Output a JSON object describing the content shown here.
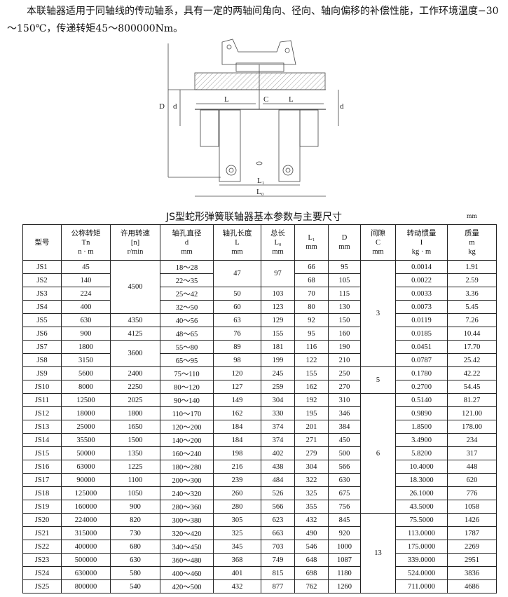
{
  "intro": "本联轴器适用于同轴线的传动轴系，具有一定的两轴间角向、径向、轴向偏移的补偿性能，工作环境温度−30～150℃，传递转矩45～800000Nm。",
  "drawing_labels": {
    "D": "D",
    "d": "d",
    "L": "L",
    "C": "C",
    "L1": "L₁",
    "L0": "L₀"
  },
  "table_title": "JS型蛇形弹簧联轴器基本参数与主要尺寸",
  "unit": "mm",
  "headers": [
    [
      "型号"
    ],
    [
      "公称转矩",
      "Tn",
      "n · m"
    ],
    [
      "许用转速",
      "[n]",
      "r/min"
    ],
    [
      "轴孔直径",
      "d",
      "mm"
    ],
    [
      "轴孔长度",
      "L",
      "mm"
    ],
    [
      "总长",
      "L₀",
      "mm"
    ],
    [
      "L₁",
      "mm"
    ],
    [
      "D",
      "mm"
    ],
    [
      "间隙",
      "C",
      "mm"
    ],
    [
      "转动惯量",
      "I",
      "kg · m"
    ],
    [
      "质量",
      "m",
      "kg"
    ]
  ],
  "rows": [
    [
      "JS1",
      "45",
      "4500",
      "18～28",
      "47",
      "97",
      "66",
      "95",
      "3",
      "0.0014",
      "1.91"
    ],
    [
      "JS2",
      "140",
      null,
      "22～35",
      null,
      null,
      "68",
      "105",
      null,
      "0.0022",
      "2.59"
    ],
    [
      "JS3",
      "224",
      null,
      "25～42",
      "50",
      "103",
      "70",
      "115",
      null,
      "0.0033",
      "3.36"
    ],
    [
      "JS4",
      "400",
      null,
      "32～50",
      "60",
      "123",
      "80",
      "130",
      null,
      "0.0073",
      "5.45"
    ],
    [
      "JS5",
      "630",
      "4350",
      "40～56",
      "63",
      "129",
      "92",
      "150",
      null,
      "0.0119",
      "7.26"
    ],
    [
      "JS6",
      "900",
      "4125",
      "48～65",
      "76",
      "155",
      "95",
      "160",
      null,
      "0.0185",
      "10.44"
    ],
    [
      "JS7",
      "1800",
      "3600",
      "55～80",
      "89",
      "181",
      "116",
      "190",
      null,
      "0.0451",
      "17.70"
    ],
    [
      "JS8",
      "3150",
      null,
      "65～95",
      "98",
      "199",
      "122",
      "210",
      null,
      "0.0787",
      "25.42"
    ],
    [
      "JS9",
      "5600",
      "2400",
      "75～110",
      "120",
      "245",
      "155",
      "250",
      "5",
      "0.1780",
      "42.22"
    ],
    [
      "JS10",
      "8000",
      "2250",
      "80～120",
      "127",
      "259",
      "162",
      "270",
      null,
      "0.2700",
      "54.45"
    ],
    [
      "JS11",
      "12500",
      "2025",
      "90～140",
      "149",
      "304",
      "192",
      "310",
      "6",
      "0.5140",
      "81.27"
    ],
    [
      "JS12",
      "18000",
      "1800",
      "110～170",
      "162",
      "330",
      "195",
      "346",
      null,
      "0.9890",
      "121.00"
    ],
    [
      "JS13",
      "25000",
      "1650",
      "120～200",
      "184",
      "374",
      "201",
      "384",
      null,
      "1.8500",
      "178.00"
    ],
    [
      "JS14",
      "35500",
      "1500",
      "140～200",
      "184",
      "374",
      "271",
      "450",
      null,
      "3.4900",
      "234"
    ],
    [
      "JS15",
      "50000",
      "1350",
      "160～240",
      "198",
      "402",
      "279",
      "500",
      null,
      "5.8200",
      "317"
    ],
    [
      "JS16",
      "63000",
      "1225",
      "180～280",
      "216",
      "438",
      "304",
      "566",
      null,
      "10.4000",
      "448"
    ],
    [
      "JS17",
      "90000",
      "1100",
      "200～300",
      "239",
      "484",
      "322",
      "630",
      null,
      "18.3000",
      "620"
    ],
    [
      "JS18",
      "125000",
      "1050",
      "240～320",
      "260",
      "526",
      "325",
      "675",
      null,
      "26.1000",
      "776"
    ],
    [
      "JS19",
      "160000",
      "900",
      "280～360",
      "280",
      "566",
      "355",
      "756",
      null,
      "43.5000",
      "1058"
    ],
    [
      "JS20",
      "224000",
      "820",
      "300～380",
      "305",
      "623",
      "432",
      "845",
      "13",
      "75.5000",
      "1426"
    ],
    [
      "JS21",
      "315000",
      "730",
      "320～420",
      "325",
      "663",
      "490",
      "920",
      null,
      "113.0000",
      "1787"
    ],
    [
      "JS22",
      "400000",
      "680",
      "340～450",
      "345",
      "703",
      "546",
      "1000",
      null,
      "175.0000",
      "2269"
    ],
    [
      "JS23",
      "500000",
      "630",
      "360～480",
      "368",
      "749",
      "648",
      "1087",
      null,
      "339.0000",
      "2951"
    ],
    [
      "JS24",
      "630000",
      "580",
      "400～460",
      "401",
      "815",
      "698",
      "1180",
      null,
      "524.0000",
      "3836"
    ],
    [
      "JS25",
      "800000",
      "540",
      "420～500",
      "432",
      "877",
      "762",
      "1260",
      null,
      "711.0000",
      "4686"
    ]
  ]
}
